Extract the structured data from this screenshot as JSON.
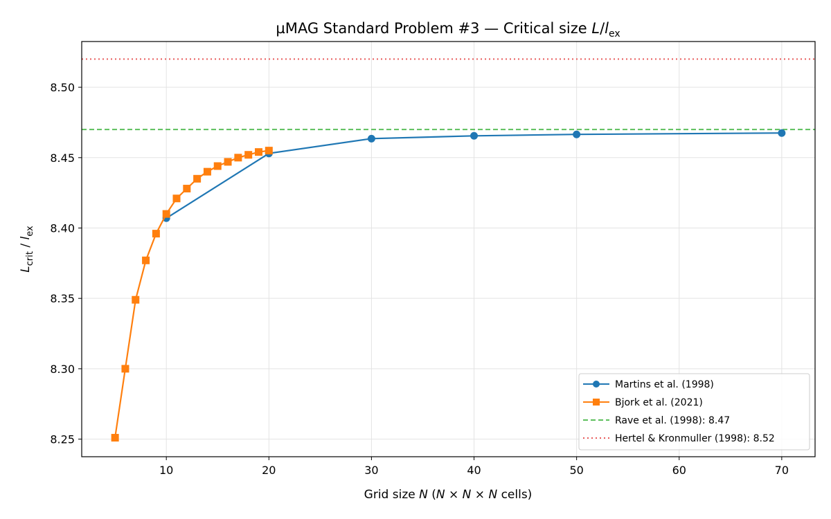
{
  "chart_data": {
    "type": "line",
    "title": "µMAG Standard Problem #3 — Critical size L/l_ex",
    "title_parts": {
      "main": "µMAG Standard Problem #3 — Critical size ",
      "var": "L",
      "slash": "/",
      "lvar": "l",
      "sub": "ex"
    },
    "xlabel": "Grid size N (N × N × N cells)",
    "xlabel_parts": {
      "a": "Grid size ",
      "N1": "N",
      "b": " (",
      "N2": "N",
      "c": " × ",
      "N3": "N",
      "d": " × ",
      "N4": "N",
      "e": " cells)"
    },
    "ylabel": "L_crit / l_ex",
    "ylabel_parts": {
      "L": "L",
      "crit": "crit",
      "slash": " / ",
      "l": "l",
      "ex": "ex"
    },
    "xlim": [
      1.75,
      73.25
    ],
    "ylim": [
      8.2375,
      8.5325
    ],
    "xticks": [
      10,
      20,
      30,
      40,
      50,
      60,
      70
    ],
    "yticks": [
      8.25,
      8.3,
      8.35,
      8.4,
      8.45,
      8.5
    ],
    "ytick_labels": [
      "8.25",
      "8.30",
      "8.35",
      "8.40",
      "8.45",
      "8.50"
    ],
    "grid": true,
    "legend_position": "lower-right",
    "series": [
      {
        "name": "Martins et al. (1998)",
        "color": "#1f77b4",
        "marker": "circle",
        "x": [
          10,
          20,
          30,
          40,
          50,
          70
        ],
        "y": [
          8.407,
          8.453,
          8.4635,
          8.4655,
          8.4665,
          8.4675
        ]
      },
      {
        "name": "Bjork et al. (2021)",
        "color": "#ff7f0e",
        "marker": "square",
        "x": [
          5,
          6,
          7,
          8,
          9,
          10,
          11,
          12,
          13,
          14,
          15,
          16,
          17,
          18,
          19,
          20
        ],
        "y": [
          8.251,
          8.3,
          8.349,
          8.377,
          8.396,
          8.41,
          8.421,
          8.428,
          8.435,
          8.44,
          8.444,
          8.447,
          8.45,
          8.452,
          8.454,
          8.455
        ]
      }
    ],
    "reference_lines": [
      {
        "name": "Rave et al. (1998): 8.47",
        "y": 8.47,
        "color": "#5cbf5c",
        "style": "dashed"
      },
      {
        "name": "Hertel & Kronmuller (1998): 8.52",
        "y": 8.52,
        "color": "#e85a5a",
        "style": "dotted"
      }
    ]
  }
}
